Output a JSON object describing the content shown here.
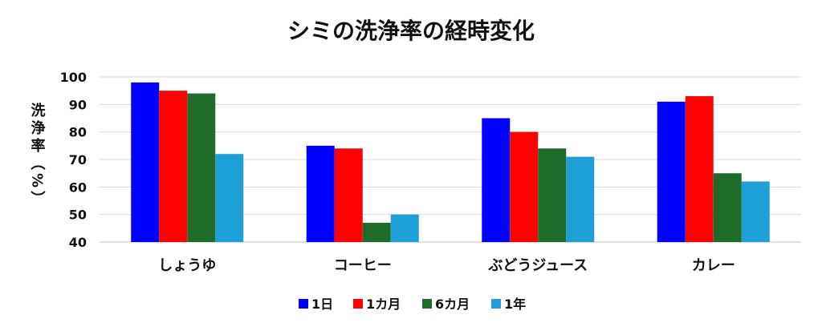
{
  "chart_data": {
    "type": "bar",
    "title": "シミの洗浄率の経時変化",
    "ylabel": "洗浄率（%）",
    "ylim": [
      40,
      100
    ],
    "yticks": [
      40,
      50,
      60,
      70,
      80,
      90,
      100
    ],
    "grid": true,
    "legend_position": "bottom",
    "categories": [
      "しょうゆ",
      "コーヒー",
      "ぶどうジュース",
      "カレー"
    ],
    "series": [
      {
        "name": "1日",
        "color": "#0000ff",
        "values": [
          98,
          75,
          85,
          91
        ]
      },
      {
        "name": "1カ月",
        "color": "#ff0000",
        "values": [
          95,
          74,
          80,
          93
        ]
      },
      {
        "name": "6カ月",
        "color": "#1e6b2a",
        "values": [
          94,
          47,
          74,
          65
        ]
      },
      {
        "name": "1年",
        "color": "#1e9fd6",
        "values": [
          72,
          50,
          71,
          62
        ]
      }
    ]
  }
}
